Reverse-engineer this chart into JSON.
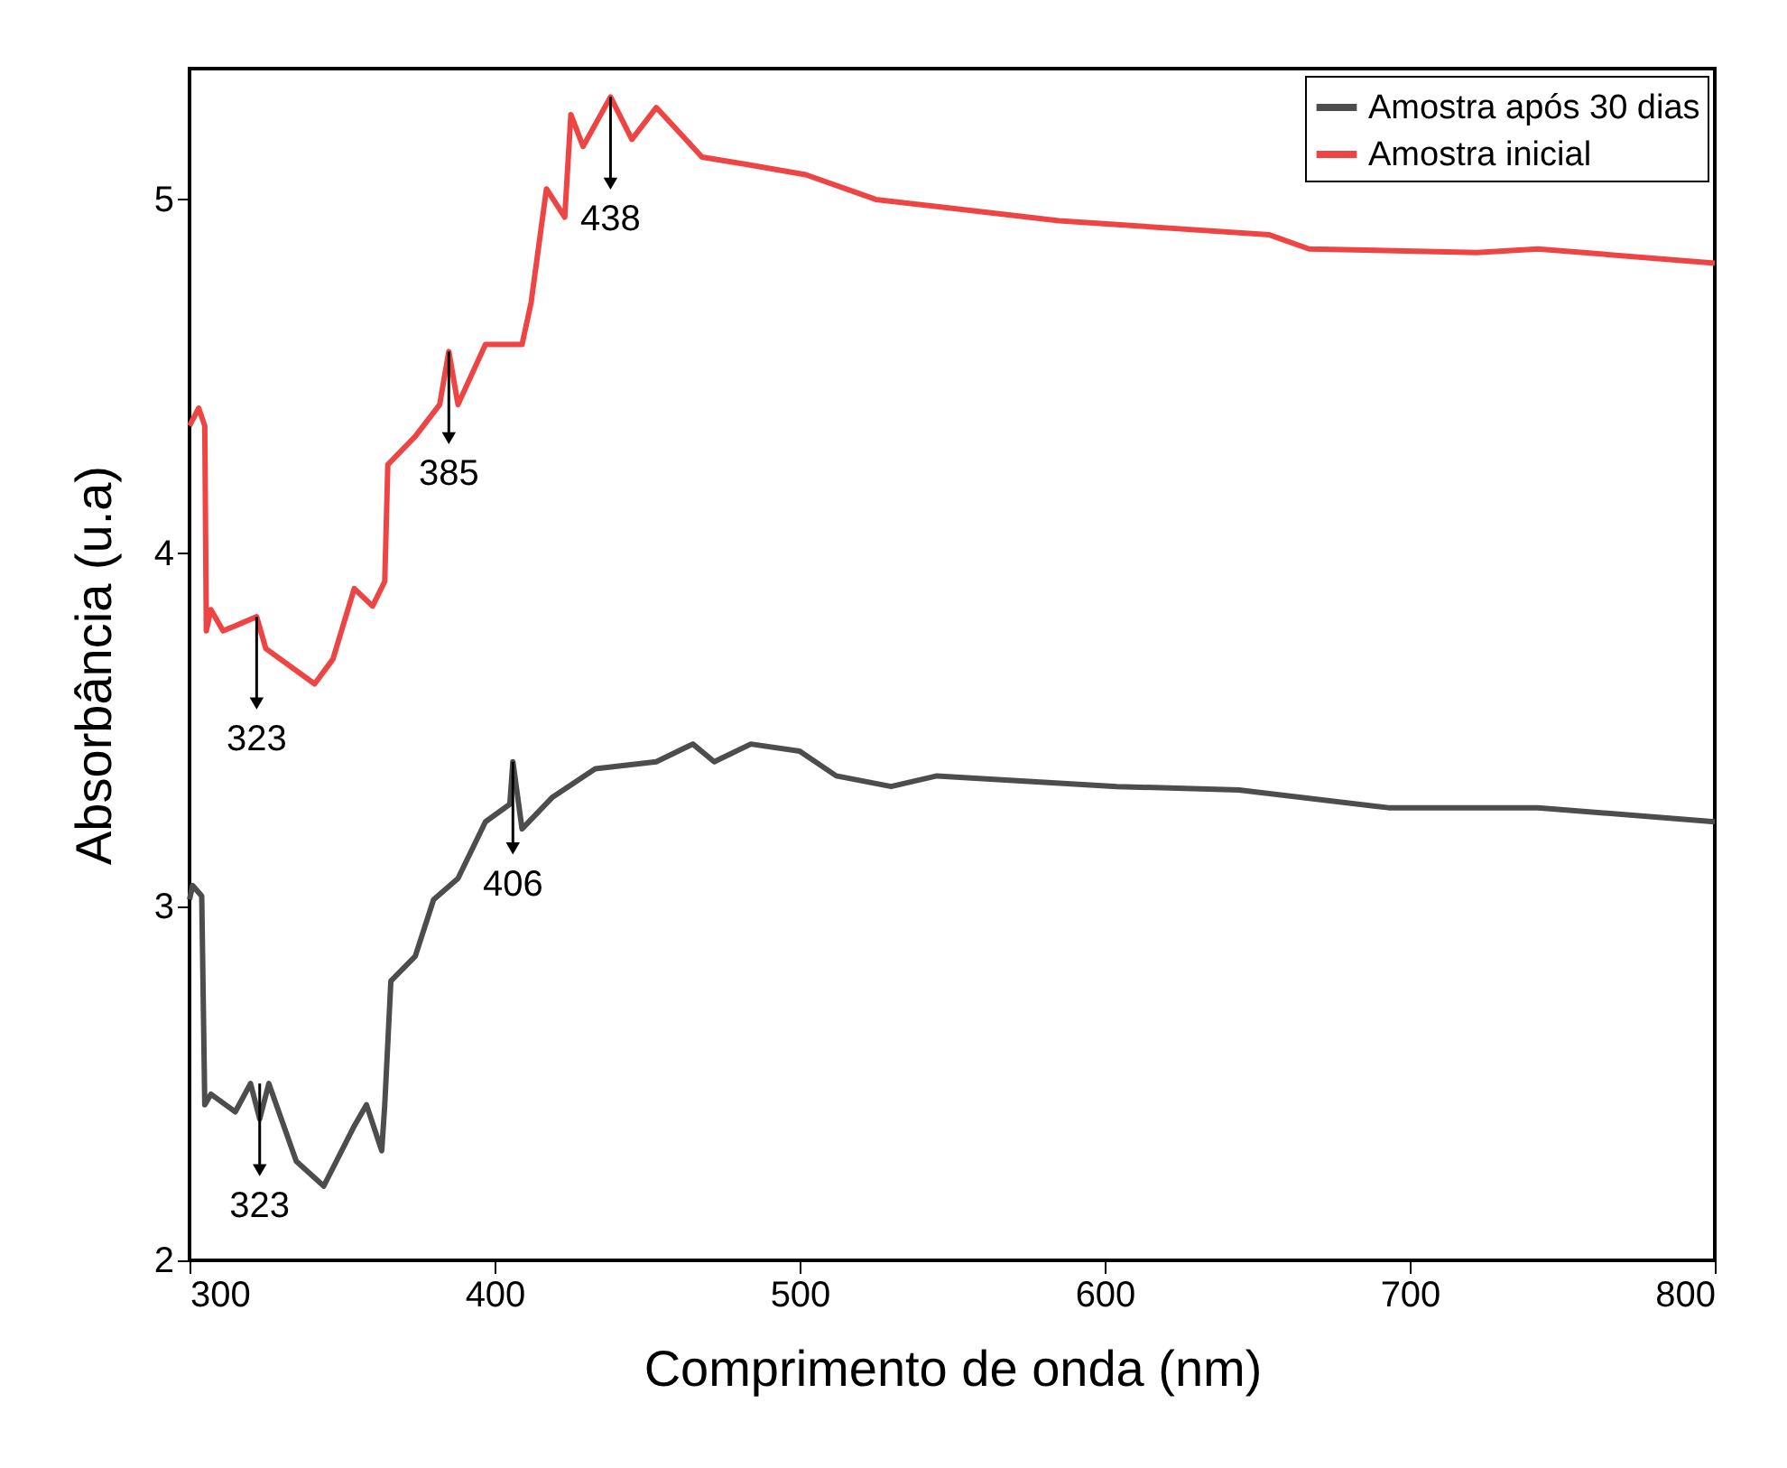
{
  "chart_data": {
    "type": "line",
    "xlabel": "Comprimento de onda (nm)",
    "ylabel": "Absorbância (u.a)",
    "xlim": [
      300,
      800
    ],
    "ylim": [
      2,
      5.37
    ],
    "xticks": [
      300,
      400,
      500,
      600,
      700,
      800
    ],
    "yticks": [
      2,
      3,
      4,
      5
    ],
    "grid": false,
    "legend": "top right",
    "line_style": "solid",
    "marker": "none",
    "series": [
      {
        "name": "Amostra após 30 dias",
        "color": "#4d4d4d",
        "x": [
          300,
          301,
          304,
          305,
          307,
          315,
          320,
          323,
          326,
          335,
          344,
          354,
          358,
          363,
          364,
          366,
          374,
          380,
          388,
          397,
          405,
          406,
          409,
          419,
          433,
          453,
          465,
          472,
          484,
          500,
          512,
          530,
          545,
          604,
          644,
          693,
          742,
          800
        ],
        "values": [
          3.02,
          3.06,
          3.03,
          2.44,
          2.47,
          2.42,
          2.5,
          2.4,
          2.5,
          2.28,
          2.21,
          2.38,
          2.44,
          2.31,
          2.44,
          2.79,
          2.86,
          3.02,
          3.08,
          3.24,
          3.29,
          3.41,
          3.22,
          3.31,
          3.39,
          3.41,
          3.46,
          3.41,
          3.46,
          3.44,
          3.37,
          3.34,
          3.37,
          3.34,
          3.33,
          3.28,
          3.28,
          3.24
        ]
      },
      {
        "name": "Amostra inicial",
        "color": "#ee4444",
        "x": [
          300,
          303,
          305,
          305.5,
          307,
          311,
          322,
          325,
          341,
          347,
          354,
          360,
          364,
          365,
          374,
          382,
          385,
          388,
          397,
          409,
          412,
          417,
          423,
          425,
          429,
          438,
          445,
          453,
          468,
          482,
          502,
          525,
          545,
          585,
          654,
          667,
          722,
          742,
          800
        ],
        "values": [
          4.36,
          4.41,
          4.36,
          3.78,
          3.84,
          3.78,
          3.82,
          3.73,
          3.63,
          3.7,
          3.9,
          3.85,
          3.92,
          4.25,
          4.33,
          4.42,
          4.57,
          4.42,
          4.59,
          4.59,
          4.71,
          5.03,
          4.95,
          5.24,
          5.15,
          5.29,
          5.17,
          5.26,
          5.12,
          5.1,
          5.07,
          5.0,
          4.98,
          4.94,
          4.9,
          4.86,
          4.85,
          4.86,
          4.82
        ]
      }
    ],
    "annotations": [
      {
        "text": "323",
        "x": 322,
        "y": 3.82
      },
      {
        "text": "385",
        "x": 385,
        "y": 4.57
      },
      {
        "text": "438",
        "x": 438,
        "y": 5.29
      },
      {
        "text": "323",
        "x": 323,
        "y": 2.5
      },
      {
        "text": "406",
        "x": 406,
        "y": 3.41
      }
    ]
  }
}
